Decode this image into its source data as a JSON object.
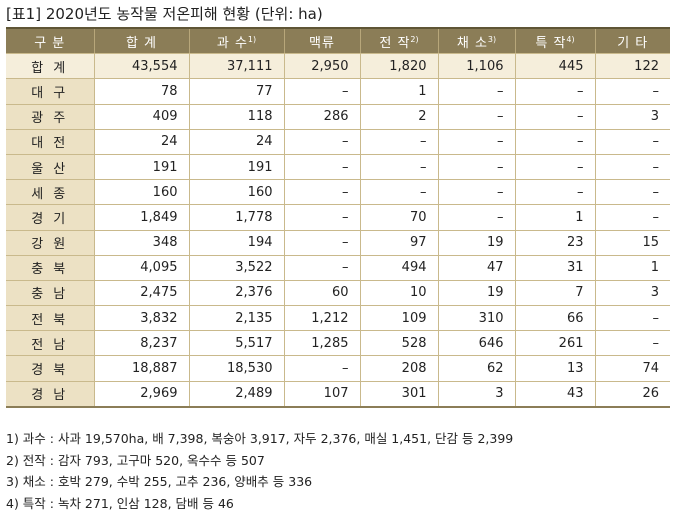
{
  "title": "[표1] 2020년도 농작물 저온피해 현황 (단위: ha)",
  "table": {
    "headers": [
      {
        "label": "구 분",
        "sup": ""
      },
      {
        "label": "합 계",
        "sup": ""
      },
      {
        "label": "과 수",
        "sup": "1)"
      },
      {
        "label": "맥류",
        "sup": ""
      },
      {
        "label": "전 작",
        "sup": "2)"
      },
      {
        "label": "채 소",
        "sup": "3)"
      },
      {
        "label": "특 작",
        "sup": "4)"
      },
      {
        "label": "기 타",
        "sup": ""
      }
    ],
    "rows": [
      {
        "region": "합 계",
        "values": [
          "43,554",
          "37,111",
          "2,950",
          "1,820",
          "1,106",
          "445",
          "122"
        ]
      },
      {
        "region": "대 구",
        "values": [
          "78",
          "77",
          "–",
          "1",
          "–",
          "–",
          "–"
        ]
      },
      {
        "region": "광 주",
        "values": [
          "409",
          "118",
          "286",
          "2",
          "–",
          "–",
          "3"
        ]
      },
      {
        "region": "대 전",
        "values": [
          "24",
          "24",
          "–",
          "–",
          "–",
          "–",
          "–"
        ]
      },
      {
        "region": "울 산",
        "values": [
          "191",
          "191",
          "–",
          "–",
          "–",
          "–",
          "–"
        ]
      },
      {
        "region": "세 종",
        "values": [
          "160",
          "160",
          "–",
          "–",
          "–",
          "–",
          "–"
        ]
      },
      {
        "region": "경 기",
        "values": [
          "1,849",
          "1,778",
          "–",
          "70",
          "–",
          "1",
          "–"
        ]
      },
      {
        "region": "강 원",
        "values": [
          "348",
          "194",
          "–",
          "97",
          "19",
          "23",
          "15"
        ]
      },
      {
        "region": "충 북",
        "values": [
          "4,095",
          "3,522",
          "–",
          "494",
          "47",
          "31",
          "1"
        ]
      },
      {
        "region": "충 남",
        "values": [
          "2,475",
          "2,376",
          "60",
          "10",
          "19",
          "7",
          "3"
        ]
      },
      {
        "region": "전 북",
        "values": [
          "3,832",
          "2,135",
          "1,212",
          "109",
          "310",
          "66",
          "–"
        ]
      },
      {
        "region": "전 남",
        "values": [
          "8,237",
          "5,517",
          "1,285",
          "528",
          "646",
          "261",
          "–"
        ]
      },
      {
        "region": "경 북",
        "values": [
          "18,887",
          "18,530",
          "–",
          "208",
          "62",
          "13",
          "74"
        ]
      },
      {
        "region": "경 남",
        "values": [
          "2,969",
          "2,489",
          "107",
          "301",
          "3",
          "43",
          "26"
        ]
      }
    ]
  },
  "notes": [
    "1) 과수 : 사과 19,570ha, 배 7,398, 복숭아 3,917, 자두 2,376, 매실 1,451, 단감 등 2,399",
    "2) 전작 : 감자 793, 고구마 520, 옥수수 등 507",
    "3) 채소 : 호박 279, 수박 255, 고추 236, 양배추 등 336",
    "4) 특작 : 녹차 271, 인삼 128, 담배 등 46"
  ],
  "colors": {
    "header_bg": "#8b7d57",
    "region_bg": "#ece1c4",
    "total_bg": "#f5eedb",
    "grid": "#c9b98c"
  }
}
